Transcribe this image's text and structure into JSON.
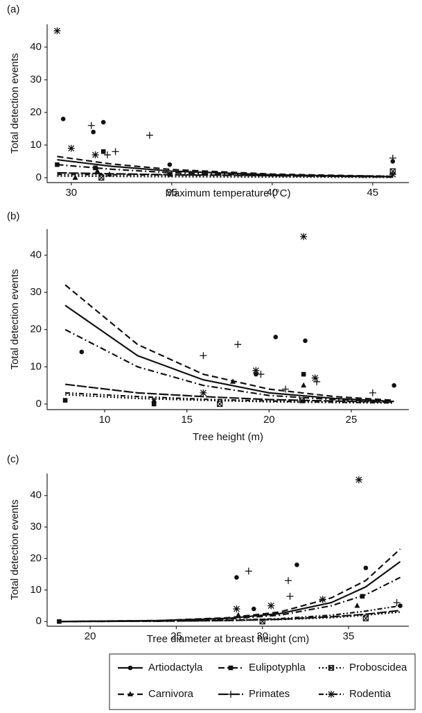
{
  "legend": [
    {
      "name": "Artiodactyla",
      "marker": "circle",
      "dash": "none"
    },
    {
      "name": "Carnivora",
      "marker": "triangle",
      "dash": "9 5"
    },
    {
      "name": "Eulipotyphla",
      "marker": "square",
      "dash": "9 4 2 4"
    },
    {
      "name": "Primates",
      "marker": "plus",
      "dash": "14 3"
    },
    {
      "name": "Proboscidea",
      "marker": "xsquare",
      "dash": "2 3"
    },
    {
      "name": "Rodentia",
      "marker": "star",
      "dash": "7 3 2 3 2 3"
    }
  ],
  "chart_data": [
    {
      "type": "scatter",
      "panel": "(a)",
      "x_label": "Maximum temperature (°C)",
      "y_label": "Total detection events",
      "xlim": [
        28.8,
        46.8
      ],
      "xticks": [
        30,
        35,
        40,
        45
      ],
      "ylim": [
        -1.5,
        47
      ],
      "yticks": [
        0,
        10,
        20,
        30,
        40
      ],
      "series": [
        {
          "x": [
            29.6,
            31.1,
            31.6,
            34.9,
            46
          ],
          "y": [
            18,
            14,
            17,
            4,
            5
          ],
          "fit": {
            "x": [
              29.3,
              32,
              35,
              40,
              46
            ],
            "y": [
              5.5,
              3.5,
              2,
              0.9,
              0.3
            ]
          }
        },
        {
          "x": [
            31.3,
            31.9,
            30.2
          ],
          "y": [
            2,
            1,
            0
          ],
          "fit": {
            "x": [
              29.3,
              32,
              35,
              40,
              46
            ],
            "y": [
              6.5,
              4.2,
              2.5,
              1.1,
              0.4
            ]
          }
        },
        {
          "x": [
            29.3,
            31.2,
            31.6,
            34.9
          ],
          "y": [
            4,
            3,
            8,
            1
          ],
          "fit": {
            "x": [
              29.3,
              32,
              35,
              40,
              46
            ],
            "y": [
              4,
              2.6,
              1.5,
              0.6,
              0.2
            ]
          }
        },
        {
          "x": [
            31,
            31.8,
            32.2,
            33.9,
            46
          ],
          "y": [
            16,
            7,
            8,
            13,
            6
          ],
          "fit": {
            "x": [
              29.3,
              35,
              46
            ],
            "y": [
              1.5,
              0.9,
              0.3
            ]
          }
        },
        {
          "x": [
            46,
            31.5
          ],
          "y": [
            2,
            0
          ],
          "fit": {
            "x": [
              29.3,
              35,
              46
            ],
            "y": [
              0.5,
              0.3,
              0.1
            ]
          }
        },
        {
          "x": [
            29.3,
            30,
            31.2,
            46
          ],
          "y": [
            45,
            9,
            7,
            1
          ],
          "fit": {
            "x": [
              29.3,
              35,
              46
            ],
            "y": [
              1,
              0.8,
              0.5
            ]
          }
        }
      ]
    },
    {
      "type": "scatter",
      "panel": "(b)",
      "x_label": "Tree height (m)",
      "y_label": "Total detection events",
      "xlim": [
        6.5,
        28.5
      ],
      "xticks": [
        10,
        15,
        20,
        25
      ],
      "ylim": [
        -1.5,
        47
      ],
      "yticks": [
        0,
        10,
        20,
        30,
        40
      ],
      "series": [
        {
          "x": [
            8.6,
            20.4,
            22.2,
            27.6,
            19.2
          ],
          "y": [
            14,
            18,
            17,
            5,
            8
          ],
          "fit": {
            "x": [
              7.6,
              12,
              16,
              20,
              24,
              27.6
            ],
            "y": [
              26.5,
              13,
              6.5,
              3,
              1.5,
              0.7
            ]
          }
        },
        {
          "x": [
            22.1,
            17.8,
            13
          ],
          "y": [
            5,
            6,
            1
          ],
          "fit": {
            "x": [
              7.6,
              12,
              16,
              20,
              24,
              27.6
            ],
            "y": [
              32,
              16,
              8,
              4,
              2,
              1
            ]
          }
        },
        {
          "x": [
            22.1,
            7.6,
            13
          ],
          "y": [
            8,
            1,
            0
          ],
          "fit": {
            "x": [
              7.6,
              12,
              16,
              20,
              24,
              27.6
            ],
            "y": [
              20,
              10,
              5,
              2.3,
              1.2,
              0.6
            ]
          }
        },
        {
          "x": [
            16,
            18.1,
            19.5,
            22.9,
            26.3,
            21
          ],
          "y": [
            13,
            16,
            8,
            6,
            3,
            4
          ],
          "fit": {
            "x": [
              7.6,
              12,
              16,
              20,
              24,
              27.6
            ],
            "y": [
              5.3,
              3,
              2,
              1.2,
              0.8,
              0.5
            ]
          }
        },
        {
          "x": [
            17,
            22
          ],
          "y": [
            0,
            1
          ],
          "fit": {
            "x": [
              7.6,
              12,
              16,
              20,
              24,
              27.6
            ],
            "y": [
              2.5,
              1.5,
              1,
              0.6,
              0.4,
              0.3
            ]
          }
        },
        {
          "x": [
            22.1,
            19.2,
            22.8,
            16
          ],
          "y": [
            45,
            9,
            7,
            3
          ],
          "fit": {
            "x": [
              7.6,
              12,
              16,
              20,
              24,
              27.6
            ],
            "y": [
              3,
              2,
              1.3,
              0.8,
              0.5,
              0.3
            ]
          }
        }
      ]
    },
    {
      "type": "scatter",
      "panel": "(c)",
      "x_label": "Tree diameter at breast height (cm)",
      "y_label": "Total detection events",
      "xlim": [
        17.5,
        38.5
      ],
      "xticks": [
        20,
        25,
        30,
        35
      ],
      "ylim": [
        -1.5,
        47
      ],
      "yticks": [
        0,
        10,
        20,
        30,
        40
      ],
      "series": [
        {
          "x": [
            28.5,
            32,
            36,
            29.5,
            38
          ],
          "y": [
            14,
            18,
            17,
            4,
            5
          ],
          "fit": {
            "x": [
              18.2,
              24,
              28,
              31,
              34,
              36,
              38
            ],
            "y": [
              0,
              0.3,
              1,
              2.5,
              6,
              11,
              19
            ]
          }
        },
        {
          "x": [
            35.5,
            28.6
          ],
          "y": [
            5,
            2
          ],
          "fit": {
            "x": [
              18.2,
              24,
              28,
              31,
              34,
              36,
              38
            ],
            "y": [
              0,
              0.3,
              1.2,
              3,
              7.5,
              13,
              23
            ]
          }
        },
        {
          "x": [
            35.8,
            18.2
          ],
          "y": [
            8,
            0
          ],
          "fit": {
            "x": [
              18.2,
              24,
              28,
              31,
              34,
              36,
              38
            ],
            "y": [
              0,
              0.2,
              0.8,
              2,
              5,
              8.5,
              14
            ]
          }
        },
        {
          "x": [
            29.2,
            31.5,
            31.6,
            33.5,
            37.8
          ],
          "y": [
            16,
            13,
            8,
            7,
            6
          ],
          "fit": {
            "x": [
              18.2,
              24,
              28,
              31,
              34,
              36,
              38
            ],
            "y": [
              0,
              0.1,
              0.3,
              0.7,
              1.5,
              2.3,
              3.5
            ]
          }
        },
        {
          "x": [
            36,
            30
          ],
          "y": [
            1,
            0
          ],
          "fit": {
            "x": [
              18.2,
              24,
              28,
              31,
              34,
              36,
              38
            ],
            "y": [
              0,
              0.1,
              0.3,
              0.6,
              1.2,
              2,
              3
            ]
          }
        },
        {
          "x": [
            35.6,
            30.5,
            28.5,
            33.5
          ],
          "y": [
            45,
            5,
            4,
            7
          ],
          "fit": {
            "x": [
              18.2,
              24,
              28,
              31,
              34,
              36,
              38
            ],
            "y": [
              0,
              0.1,
              0.4,
              0.9,
              2,
              3.3,
              5
            ]
          }
        }
      ]
    }
  ]
}
